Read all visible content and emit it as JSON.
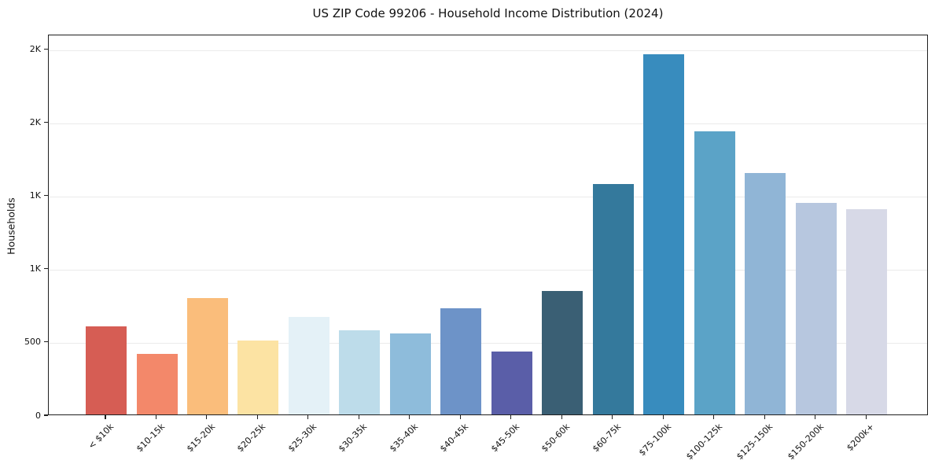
{
  "chart_data": {
    "type": "bar",
    "title": "US ZIP Code 99206 - Household Income Distribution (2024)",
    "xlabel": "",
    "ylabel": "Households",
    "ylim": [
      0,
      2600
    ],
    "grid": true,
    "legend": "none",
    "categories": [
      "< $10k",
      "$10-15k",
      "$15-20k",
      "$20-25k",
      "$25-30k",
      "$30-35k",
      "$35-40k",
      "$40-45k",
      "$45-50k",
      "$50-60k",
      "$60-75k",
      "$75-100k",
      "$100-125k",
      "$125-150k",
      "$150-200k",
      "$200k+"
    ],
    "values": [
      600,
      415,
      795,
      505,
      665,
      575,
      555,
      725,
      430,
      845,
      1575,
      2460,
      1935,
      1650,
      1445,
      1400
    ],
    "bar_colors": [
      "#d65d54",
      "#f3886a",
      "#fabd7b",
      "#fce3a3",
      "#e4f1f7",
      "#bddcea",
      "#8ebcdb",
      "#6d93c8",
      "#5a5ea8",
      "#3a5f74",
      "#34799c",
      "#388cbe",
      "#5ba3c7",
      "#90b5d6",
      "#b7c7df",
      "#d7d9e7"
    ],
    "yticks": [
      {
        "value": 0,
        "label": "0"
      },
      {
        "value": 500,
        "label": "500"
      },
      {
        "value": 1000,
        "label": "1K"
      },
      {
        "value": 1500,
        "label": "1K"
      },
      {
        "value": 2000,
        "label": "2K"
      },
      {
        "value": 2500,
        "label": "2K"
      }
    ]
  }
}
